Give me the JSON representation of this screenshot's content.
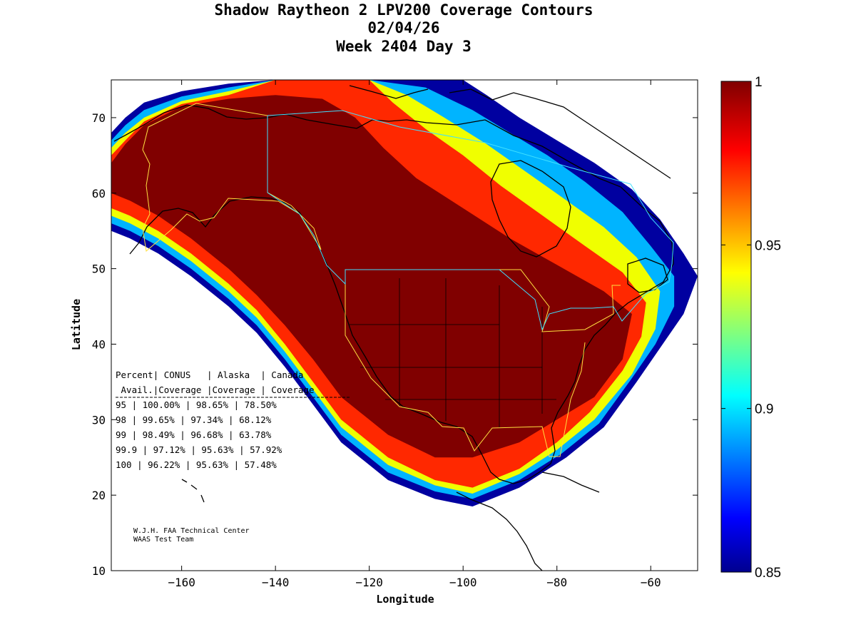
{
  "chart_data": {
    "type": "heatmap",
    "title": [
      "Shadow Raytheon 2 LPV200 Coverage Contours",
      "02/04/26",
      "Week 2404 Day 3"
    ],
    "xlabel": "Longitude",
    "ylabel": "Latitude",
    "xlim": [
      -175,
      -50
    ],
    "ylim": [
      10,
      75
    ],
    "xticks": [
      -160,
      -140,
      -120,
      -100,
      -80,
      -60
    ],
    "yticks": [
      20,
      30,
      40,
      50,
      60,
      70
    ],
    "colorbar": {
      "range": [
        0.85,
        1
      ],
      "ticks": [
        {
          "value": 1,
          "label": "1"
        },
        {
          "value": 0.95,
          "label": "0.95"
        },
        {
          "value": 0.9,
          "label": "0.9"
        },
        {
          "value": 0.85,
          "label": "0.85"
        }
      ],
      "colormap": "jet"
    },
    "coverage_table": {
      "header1": [
        "Percent",
        "CONUS",
        "Alaska",
        "Canada"
      ],
      "header2": [
        "Avail.",
        "Coverage",
        "Coverage",
        "Coverage"
      ],
      "rows": [
        {
          "percent": "95",
          "conus": "100.00%",
          "alaska": "98.65%",
          "canada": "78.50%"
        },
        {
          "percent": "98",
          "conus": "99.65%",
          "alaska": "97.34%",
          "canada": "68.12%"
        },
        {
          "percent": "99",
          "conus": "98.49%",
          "alaska": "96.68%",
          "canada": "63.78%"
        },
        {
          "percent": "99.9",
          "conus": "97.12%",
          "alaska": "95.63%",
          "canada": "57.92%"
        },
        {
          "percent": "100",
          "conus": "96.22%",
          "alaska": "95.63%",
          "canada": "57.48%"
        }
      ]
    },
    "coverage_bands": [
      {
        "level": 0.85,
        "color": "#0000a0",
        "points": [
          [
            -175,
            68
          ],
          [
            -172,
            70
          ],
          [
            -168,
            72
          ],
          [
            -160,
            73.5
          ],
          [
            -150,
            74.5
          ],
          [
            -140,
            75
          ],
          [
            -120,
            75
          ],
          [
            -100,
            75
          ],
          [
            -95,
            73
          ],
          [
            -88,
            70
          ],
          [
            -80,
            67
          ],
          [
            -72,
            64
          ],
          [
            -64,
            60.5
          ],
          [
            -58,
            56.5
          ],
          [
            -53,
            52
          ],
          [
            -50,
            49
          ],
          [
            -53,
            44
          ],
          [
            -58,
            39.5
          ],
          [
            -63,
            35
          ],
          [
            -70,
            29
          ],
          [
            -78,
            25
          ],
          [
            -88,
            21
          ],
          [
            -98,
            18.5
          ],
          [
            -106,
            19.5
          ],
          [
            -116,
            22
          ],
          [
            -126,
            27
          ],
          [
            -132,
            32
          ],
          [
            -138,
            37
          ],
          [
            -144,
            41.5
          ],
          [
            -150,
            45
          ],
          [
            -158,
            49
          ],
          [
            -165,
            52
          ],
          [
            -171,
            54
          ],
          [
            -175,
            55
          ]
        ]
      },
      {
        "level": 0.9,
        "color": "#00b4ff",
        "points": [
          [
            -175,
            67
          ],
          [
            -172,
            69
          ],
          [
            -168,
            71
          ],
          [
            -160,
            72.8
          ],
          [
            -150,
            74
          ],
          [
            -140,
            75
          ],
          [
            -120,
            75
          ],
          [
            -108,
            74
          ],
          [
            -98,
            71
          ],
          [
            -90,
            68
          ],
          [
            -82,
            65
          ],
          [
            -74,
            61.5
          ],
          [
            -66,
            57.5
          ],
          [
            -60,
            53
          ],
          [
            -55,
            49
          ],
          [
            -55,
            45
          ],
          [
            -59,
            40
          ],
          [
            -64,
            35.5
          ],
          [
            -71,
            29.5
          ],
          [
            -79,
            25.5
          ],
          [
            -88,
            22
          ],
          [
            -98,
            19.5
          ],
          [
            -106,
            20.5
          ],
          [
            -116,
            23
          ],
          [
            -126,
            28
          ],
          [
            -132,
            33
          ],
          [
            -138,
            38
          ],
          [
            -144,
            42.5
          ],
          [
            -150,
            46
          ],
          [
            -158,
            50
          ],
          [
            -165,
            53
          ],
          [
            -171,
            55
          ],
          [
            -175,
            56
          ]
        ]
      },
      {
        "level": 0.95,
        "color": "#f0ff00",
        "points": [
          [
            -175,
            66
          ],
          [
            -172,
            68
          ],
          [
            -168,
            70
          ],
          [
            -160,
            72.2
          ],
          [
            -150,
            73.5
          ],
          [
            -140,
            75
          ],
          [
            -120,
            75
          ],
          [
            -112,
            73
          ],
          [
            -104,
            70
          ],
          [
            -95,
            66.5
          ],
          [
            -87,
            63
          ],
          [
            -79,
            59.5
          ],
          [
            -70,
            55.5
          ],
          [
            -63,
            51.5
          ],
          [
            -58,
            47
          ],
          [
            -59,
            42
          ],
          [
            -64,
            36
          ],
          [
            -72,
            30
          ],
          [
            -80,
            26
          ],
          [
            -88,
            22.8
          ],
          [
            -98,
            20.2
          ],
          [
            -106,
            21.3
          ],
          [
            -116,
            24
          ],
          [
            -126,
            29
          ],
          [
            -132,
            34
          ],
          [
            -138,
            39
          ],
          [
            -144,
            43.5
          ],
          [
            -150,
            47
          ],
          [
            -158,
            51
          ],
          [
            -165,
            54
          ],
          [
            -171,
            56
          ],
          [
            -175,
            57
          ]
        ]
      },
      {
        "level": 0.98,
        "color": "#ff2800",
        "points": [
          [
            -175,
            65
          ],
          [
            -172,
            67
          ],
          [
            -168,
            69.5
          ],
          [
            -160,
            71.8
          ],
          [
            -150,
            73
          ],
          [
            -140,
            75
          ],
          [
            -120,
            75
          ],
          [
            -115,
            72
          ],
          [
            -108,
            68.5
          ],
          [
            -100,
            65
          ],
          [
            -92,
            61
          ],
          [
            -83,
            57
          ],
          [
            -74,
            53
          ],
          [
            -66,
            49.5
          ],
          [
            -61,
            45.5
          ],
          [
            -62,
            41
          ],
          [
            -66,
            36.5
          ],
          [
            -73,
            31
          ],
          [
            -80,
            27
          ],
          [
            -88,
            23.5
          ],
          [
            -98,
            21
          ],
          [
            -106,
            22
          ],
          [
            -116,
            25
          ],
          [
            -126,
            30
          ],
          [
            -132,
            35
          ],
          [
            -138,
            40
          ],
          [
            -144,
            44.5
          ],
          [
            -150,
            48
          ],
          [
            -158,
            52
          ],
          [
            -165,
            55
          ],
          [
            -171,
            57
          ],
          [
            -175,
            58
          ]
        ]
      },
      {
        "level": 1.0,
        "color": "#800000",
        "points": [
          [
            -175,
            64
          ],
          [
            -172,
            66.5
          ],
          [
            -168,
            69
          ],
          [
            -160,
            71.5
          ],
          [
            -150,
            72.5
          ],
          [
            -140,
            73
          ],
          [
            -130,
            72.5
          ],
          [
            -123,
            70
          ],
          [
            -117,
            66
          ],
          [
            -110,
            62
          ],
          [
            -100,
            58
          ],
          [
            -90,
            54
          ],
          [
            -80,
            50.5
          ],
          [
            -70,
            47
          ],
          [
            -64,
            44
          ],
          [
            -66,
            38
          ],
          [
            -72,
            33
          ],
          [
            -80,
            30
          ],
          [
            -88,
            27
          ],
          [
            -98,
            25
          ],
          [
            -106,
            25
          ],
          [
            -116,
            28
          ],
          [
            -126,
            33
          ],
          [
            -132,
            38
          ],
          [
            -138,
            42.5
          ],
          [
            -144,
            46.5
          ],
          [
            -150,
            50
          ],
          [
            -158,
            54
          ],
          [
            -165,
            57
          ],
          [
            -171,
            59
          ],
          [
            -175,
            60
          ]
        ]
      }
    ],
    "credits": [
      "W.J.H. FAA Technical Center",
      "WAAS Test Team"
    ]
  }
}
